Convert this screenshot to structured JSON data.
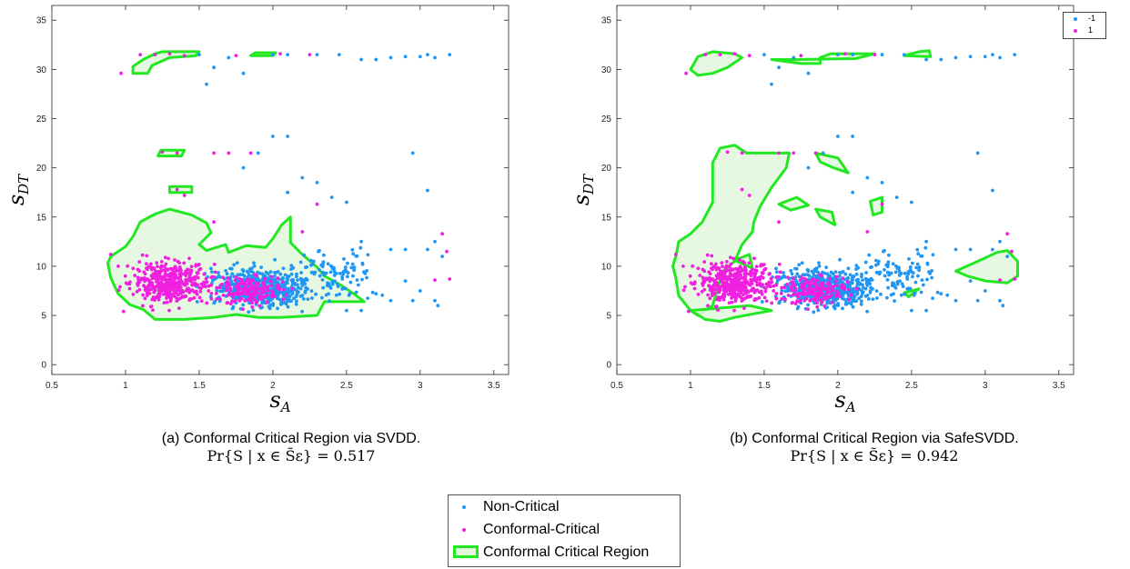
{
  "colors": {
    "non_critical": "#2196f3",
    "conformal_critical": "#f020e0",
    "region_edge": "#21e821",
    "region_fill": "#e3f7dd"
  },
  "chart_data": [
    {
      "type": "scatter",
      "panel": "a",
      "xlabel": "s_A",
      "ylabel": "s_DT",
      "xlim": [
        0.5,
        3.6
      ],
      "ylim": [
        -1,
        36.5
      ],
      "xticks": [
        "0.5",
        "1",
        "1.5",
        "2",
        "2.5",
        "3",
        "3.5"
      ],
      "yticks": [
        "0",
        "5",
        "10",
        "15",
        "20",
        "25",
        "30",
        "35"
      ],
      "grid": false,
      "series": [
        {
          "name": "Non-Critical",
          "color": "#2196f3",
          "points": [
            [
              1.5,
              31.5
            ],
            [
              1.55,
              28.5
            ],
            [
              1.6,
              30.2
            ],
            [
              1.7,
              31.2
            ],
            [
              1.8,
              29.6
            ],
            [
              2.0,
              31.5
            ],
            [
              2.1,
              31.5
            ],
            [
              2.3,
              31.5
            ],
            [
              2.45,
              31.5
            ],
            [
              2.6,
              31.0
            ],
            [
              2.7,
              31.0
            ],
            [
              2.8,
              31.2
            ],
            [
              2.9,
              31.3
            ],
            [
              3.0,
              31.3
            ],
            [
              3.05,
              31.5
            ],
            [
              3.1,
              31.2
            ],
            [
              3.2,
              31.5
            ],
            [
              2.0,
              23.2
            ],
            [
              2.1,
              23.2
            ],
            [
              2.95,
              21.5
            ],
            [
              1.9,
              21.5
            ],
            [
              1.8,
              20.0
            ],
            [
              2.2,
              19.0
            ],
            [
              2.3,
              18.5
            ],
            [
              2.4,
              17.0
            ],
            [
              2.5,
              16.5
            ],
            [
              2.1,
              17.5
            ],
            [
              3.05,
              17.7
            ],
            [
              2.6,
              12.5
            ],
            [
              2.8,
              11.7
            ],
            [
              2.9,
              11.7
            ],
            [
              3.05,
              11.7
            ],
            [
              3.1,
              12.5
            ],
            [
              3.15,
              11.0
            ],
            [
              2.9,
              8.5
            ],
            [
              3.0,
              7.5
            ],
            [
              3.1,
              6.5
            ],
            [
              3.12,
              6.0
            ],
            [
              2.7,
              7.2
            ],
            [
              2.8,
              6.5
            ],
            [
              2.95,
              6.5
            ],
            [
              2.5,
              5.5
            ],
            [
              2.6,
              5.5
            ]
          ]
        },
        {
          "name": "Conformal-Critical",
          "color": "#f020e0",
          "points": [
            [
              0.97,
              29.6
            ],
            [
              1.1,
              31.5
            ],
            [
              1.2,
              31.5
            ],
            [
              1.3,
              31.6
            ],
            [
              1.4,
              31.4
            ],
            [
              1.75,
              31.4
            ],
            [
              2.05,
              31.6
            ],
            [
              2.25,
              31.5
            ],
            [
              1.25,
              21.6
            ],
            [
              1.35,
              21.5
            ],
            [
              1.6,
              21.5
            ],
            [
              1.7,
              21.5
            ],
            [
              1.85,
              21.5
            ],
            [
              1.35,
              17.8
            ],
            [
              1.4,
              17.2
            ],
            [
              1.6,
              14.5
            ],
            [
              2.2,
              13.5
            ],
            [
              2.3,
              16.3
            ],
            [
              3.15,
              13.3
            ],
            [
              3.18,
              11.5
            ],
            [
              3.2,
              8.7
            ],
            [
              3.1,
              8.6
            ],
            [
              0.9,
              11.2
            ],
            [
              0.95,
              10.0
            ]
          ]
        }
      ],
      "regions_note": "Conformal Critical Region"
    },
    {
      "type": "scatter",
      "panel": "b",
      "xlabel": "s_A",
      "ylabel": "s_DT",
      "xlim": [
        0.5,
        3.6
      ],
      "ylim": [
        -1,
        36.5
      ],
      "xticks": [
        "0.5",
        "1",
        "1.5",
        "2",
        "2.5",
        "3",
        "3.5"
      ],
      "yticks": [
        "0",
        "5",
        "10",
        "15",
        "20",
        "25",
        "30",
        "35"
      ],
      "grid": false,
      "legend": {
        "position": "top-right",
        "entries": [
          "-1",
          "1"
        ]
      },
      "series": [
        {
          "name": "-1",
          "color": "#2196f3",
          "points": [
            [
              1.5,
              31.5
            ],
            [
              1.55,
              28.5
            ],
            [
              1.6,
              30.2
            ],
            [
              1.7,
              31.2
            ],
            [
              1.8,
              29.6
            ],
            [
              2.0,
              31.5
            ],
            [
              2.1,
              31.5
            ],
            [
              2.3,
              31.5
            ],
            [
              2.45,
              31.5
            ],
            [
              2.6,
              31.0
            ],
            [
              2.7,
              31.0
            ],
            [
              2.8,
              31.2
            ],
            [
              2.9,
              31.3
            ],
            [
              3.0,
              31.3
            ],
            [
              3.05,
              31.5
            ],
            [
              3.1,
              31.2
            ],
            [
              3.2,
              31.5
            ],
            [
              2.0,
              23.2
            ],
            [
              2.1,
              23.2
            ],
            [
              2.95,
              21.5
            ],
            [
              1.9,
              21.5
            ],
            [
              1.8,
              20.0
            ],
            [
              2.2,
              19.0
            ],
            [
              2.3,
              18.5
            ],
            [
              2.4,
              17.0
            ],
            [
              2.5,
              16.5
            ],
            [
              2.1,
              17.5
            ],
            [
              3.05,
              17.7
            ],
            [
              2.6,
              12.5
            ],
            [
              2.8,
              11.7
            ],
            [
              2.9,
              11.7
            ],
            [
              3.05,
              11.7
            ],
            [
              3.1,
              12.5
            ],
            [
              3.15,
              11.0
            ],
            [
              2.9,
              8.5
            ],
            [
              3.0,
              7.5
            ],
            [
              3.1,
              6.5
            ],
            [
              3.12,
              6.0
            ],
            [
              2.7,
              7.2
            ],
            [
              2.8,
              6.5
            ],
            [
              2.95,
              6.5
            ],
            [
              2.5,
              5.5
            ],
            [
              2.6,
              5.5
            ]
          ]
        },
        {
          "name": "1",
          "color": "#f020e0",
          "points": [
            [
              0.97,
              29.6
            ],
            [
              1.1,
              31.5
            ],
            [
              1.2,
              31.5
            ],
            [
              1.3,
              31.6
            ],
            [
              1.4,
              31.4
            ],
            [
              1.75,
              31.4
            ],
            [
              2.05,
              31.6
            ],
            [
              2.25,
              31.5
            ],
            [
              1.25,
              21.6
            ],
            [
              1.35,
              21.5
            ],
            [
              1.6,
              21.5
            ],
            [
              1.7,
              21.5
            ],
            [
              1.85,
              21.5
            ],
            [
              1.35,
              17.8
            ],
            [
              1.4,
              17.2
            ],
            [
              1.6,
              14.5
            ],
            [
              2.2,
              13.5
            ],
            [
              2.3,
              16.3
            ],
            [
              3.15,
              13.3
            ],
            [
              3.18,
              11.5
            ],
            [
              3.2,
              8.7
            ],
            [
              3.1,
              8.6
            ],
            [
              0.9,
              11.2
            ],
            [
              0.95,
              10.0
            ]
          ]
        }
      ]
    }
  ],
  "captions": {
    "a_title": "(a) Conformal Critical Region via SVDD.",
    "a_formula": "Pr{S | x ∈ S̃ε} = 0.517",
    "b_title": "(b) Conformal Critical Region via SafeSVDD.",
    "b_formula": "Pr{S | x ∈ S̃ε} = 0.942"
  },
  "legend": {
    "non_critical": "Non-Critical",
    "conformal_critical": "Conformal-Critical",
    "region": "Conformal Critical Region"
  },
  "inner_legend": {
    "neg": "-1",
    "pos": "1"
  },
  "axis_text": {
    "xlabel_main": "s",
    "xlabel_sub": "A",
    "ylabel_main": "s",
    "ylabel_sub": "DT"
  }
}
